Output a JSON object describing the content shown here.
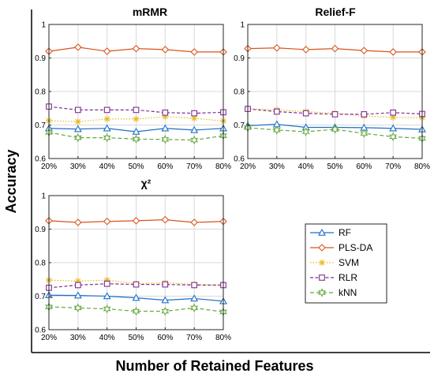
{
  "figure": {
    "xlabel": "Number of Retained Features",
    "ylabel": "Accuracy"
  },
  "legend": {
    "placement": "bottom-right",
    "entries": [
      "RF",
      "PLS-DA",
      "SVM",
      "RLR",
      "kNN"
    ]
  },
  "chart_data": [
    {
      "type": "line",
      "title": "mRMR",
      "categories": [
        "20%",
        "30%",
        "40%",
        "50%",
        "60%",
        "70%",
        "80%"
      ],
      "ylim": [
        0.6,
        1.0
      ],
      "yticks": [
        "0.6",
        "0.7",
        "0.8",
        "0.9",
        "1"
      ],
      "grid": true,
      "series": [
        {
          "name": "RF",
          "values": [
            0.69,
            0.688,
            0.69,
            0.68,
            0.69,
            0.685,
            0.69
          ]
        },
        {
          "name": "PLS-DA",
          "values": [
            0.92,
            0.932,
            0.92,
            0.928,
            0.925,
            0.918,
            0.918
          ]
        },
        {
          "name": "SVM",
          "values": [
            0.713,
            0.71,
            0.718,
            0.718,
            0.725,
            0.72,
            0.712
          ]
        },
        {
          "name": "RLR",
          "values": [
            0.755,
            0.745,
            0.745,
            0.745,
            0.737,
            0.735,
            0.738
          ]
        },
        {
          "name": "kNN",
          "values": [
            0.678,
            0.662,
            0.662,
            0.658,
            0.657,
            0.655,
            0.668
          ]
        }
      ]
    },
    {
      "type": "line",
      "title": "Relief-F",
      "categories": [
        "20%",
        "30%",
        "40%",
        "50%",
        "60%",
        "70%",
        "80%"
      ],
      "ylim": [
        0.6,
        1.0
      ],
      "yticks": [
        "0.6",
        "0.7",
        "0.8",
        "0.9",
        "1"
      ],
      "grid": true,
      "series": [
        {
          "name": "RF",
          "values": [
            0.698,
            0.702,
            0.693,
            0.693,
            0.692,
            0.69,
            0.687
          ]
        },
        {
          "name": "PLS-DA",
          "values": [
            0.928,
            0.93,
            0.925,
            0.928,
            0.922,
            0.918,
            0.918
          ]
        },
        {
          "name": "SVM",
          "values": [
            0.748,
            0.745,
            0.74,
            0.735,
            0.727,
            0.723,
            0.722
          ]
        },
        {
          "name": "RLR",
          "values": [
            0.748,
            0.74,
            0.735,
            0.732,
            0.732,
            0.737,
            0.733
          ]
        },
        {
          "name": "kNN",
          "values": [
            0.692,
            0.685,
            0.68,
            0.687,
            0.675,
            0.665,
            0.66
          ]
        }
      ]
    },
    {
      "type": "line",
      "title": "χ²",
      "categories": [
        "20%",
        "30%",
        "40%",
        "50%",
        "60%",
        "70%",
        "80%"
      ],
      "ylim": [
        0.6,
        1.0
      ],
      "yticks": [
        "0.6",
        "0.7",
        "0.8",
        "0.9",
        "1"
      ],
      "grid": true,
      "series": [
        {
          "name": "RF",
          "values": [
            0.703,
            0.702,
            0.7,
            0.695,
            0.688,
            0.693,
            0.685
          ]
        },
        {
          "name": "PLS-DA",
          "values": [
            0.925,
            0.92,
            0.923,
            0.925,
            0.928,
            0.92,
            0.923
          ]
        },
        {
          "name": "SVM",
          "values": [
            0.748,
            0.745,
            0.748,
            0.737,
            0.74,
            0.735,
            0.733
          ]
        },
        {
          "name": "RLR",
          "values": [
            0.725,
            0.733,
            0.737,
            0.735,
            0.735,
            0.733,
            0.733
          ]
        },
        {
          "name": "kNN",
          "values": [
            0.668,
            0.665,
            0.662,
            0.655,
            0.655,
            0.665,
            0.653
          ]
        }
      ]
    }
  ]
}
